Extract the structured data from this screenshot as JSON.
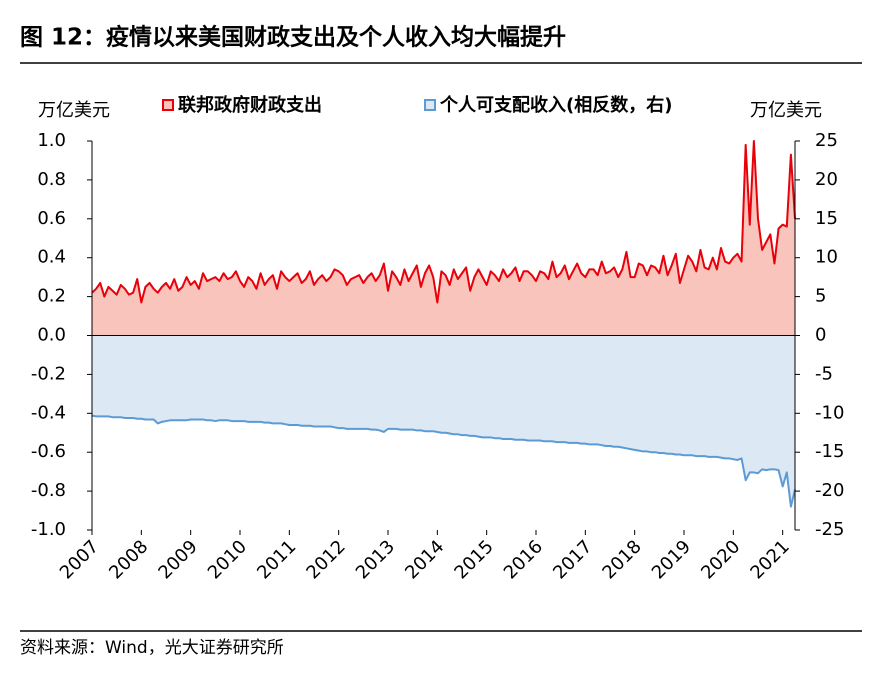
{
  "chart_data": {
    "type": "area",
    "title": "图 12：疫情以来美国财政支出及个人收入均大幅提升",
    "y_label": "万亿美元",
    "y2_label": "万亿美元",
    "source": "资料来源：Wind，光大证券研究所",
    "categories": [
      "2007",
      null,
      null,
      null,
      null,
      null,
      null,
      null,
      null,
      null,
      null,
      null,
      "2008",
      null,
      null,
      null,
      null,
      null,
      null,
      null,
      null,
      null,
      null,
      null,
      "2009",
      null,
      null,
      null,
      null,
      null,
      null,
      null,
      null,
      null,
      null,
      null,
      "2010",
      null,
      null,
      null,
      null,
      null,
      null,
      null,
      null,
      null,
      null,
      null,
      "2011",
      null,
      null,
      null,
      null,
      null,
      null,
      null,
      null,
      null,
      null,
      null,
      "2012",
      null,
      null,
      null,
      null,
      null,
      null,
      null,
      null,
      null,
      null,
      null,
      "2013",
      null,
      null,
      null,
      null,
      null,
      null,
      null,
      null,
      null,
      null,
      null,
      "2014",
      null,
      null,
      null,
      null,
      null,
      null,
      null,
      null,
      null,
      null,
      null,
      "2015",
      null,
      null,
      null,
      null,
      null,
      null,
      null,
      null,
      null,
      null,
      null,
      "2016",
      null,
      null,
      null,
      null,
      null,
      null,
      null,
      null,
      null,
      null,
      null,
      "2017",
      null,
      null,
      null,
      null,
      null,
      null,
      null,
      null,
      null,
      null,
      null,
      "2018",
      null,
      null,
      null,
      null,
      null,
      null,
      null,
      null,
      null,
      null,
      null,
      "2019",
      null,
      null,
      null,
      null,
      null,
      null,
      null,
      null,
      null,
      null,
      null,
      "2020",
      null,
      null,
      null,
      null,
      null,
      null,
      null,
      null,
      null,
      null,
      null,
      "2021",
      null,
      null,
      null
    ],
    "series": [
      {
        "name": "联邦政府财政支出",
        "color": "#e8000b",
        "fill": "#f9c4bb",
        "axis": "y",
        "values": [
          0.22,
          0.24,
          0.27,
          0.2,
          0.25,
          0.23,
          0.21,
          0.26,
          0.24,
          0.21,
          0.22,
          0.29,
          0.17,
          0.25,
          0.27,
          0.24,
          0.22,
          0.25,
          0.27,
          0.24,
          0.29,
          0.23,
          0.25,
          0.3,
          0.26,
          0.28,
          0.24,
          0.32,
          0.28,
          0.29,
          0.3,
          0.28,
          0.32,
          0.29,
          0.3,
          0.33,
          0.28,
          0.25,
          0.3,
          0.28,
          0.24,
          0.32,
          0.26,
          0.29,
          0.31,
          0.24,
          0.33,
          0.3,
          0.28,
          0.3,
          0.32,
          0.27,
          0.29,
          0.33,
          0.26,
          0.29,
          0.31,
          0.28,
          0.3,
          0.34,
          0.33,
          0.31,
          0.26,
          0.29,
          0.3,
          0.31,
          0.27,
          0.3,
          0.32,
          0.28,
          0.31,
          0.37,
          0.23,
          0.33,
          0.3,
          0.26,
          0.34,
          0.28,
          0.32,
          0.36,
          0.25,
          0.32,
          0.36,
          0.3,
          0.17,
          0.33,
          0.31,
          0.26,
          0.34,
          0.29,
          0.32,
          0.35,
          0.23,
          0.3,
          0.34,
          0.3,
          0.26,
          0.33,
          0.31,
          0.28,
          0.34,
          0.3,
          0.32,
          0.35,
          0.28,
          0.33,
          0.33,
          0.31,
          0.28,
          0.33,
          0.32,
          0.29,
          0.38,
          0.3,
          0.32,
          0.36,
          0.29,
          0.33,
          0.37,
          0.32,
          0.3,
          0.34,
          0.34,
          0.31,
          0.38,
          0.32,
          0.33,
          0.35,
          0.3,
          0.34,
          0.43,
          0.3,
          0.3,
          0.37,
          0.36,
          0.31,
          0.36,
          0.35,
          0.32,
          0.41,
          0.31,
          0.36,
          0.42,
          0.27,
          0.34,
          0.41,
          0.38,
          0.33,
          0.44,
          0.35,
          0.34,
          0.4,
          0.34,
          0.45,
          0.38,
          0.37,
          0.4,
          0.42,
          0.38,
          0.98,
          0.57,
          1.0,
          0.6,
          0.44,
          0.48,
          0.52,
          0.37,
          0.55,
          0.57,
          0.56,
          0.93,
          0.6
        ]
      },
      {
        "name": "个人可支配收入(相反数，右)",
        "color": "#5b9bd5",
        "fill": "#dde8f5",
        "axis": "y2",
        "values": [
          -10.3,
          -10.4,
          -10.4,
          -10.4,
          -10.4,
          -10.5,
          -10.5,
          -10.5,
          -10.6,
          -10.6,
          -10.6,
          -10.7,
          -10.7,
          -10.8,
          -10.8,
          -10.8,
          -11.3,
          -11.1,
          -11.0,
          -10.9,
          -10.9,
          -10.9,
          -10.9,
          -10.9,
          -10.8,
          -10.8,
          -10.8,
          -10.8,
          -10.9,
          -10.9,
          -11.0,
          -10.9,
          -10.9,
          -10.9,
          -11.0,
          -11.0,
          -11.0,
          -11.0,
          -11.1,
          -11.1,
          -11.1,
          -11.1,
          -11.2,
          -11.2,
          -11.3,
          -11.3,
          -11.3,
          -11.4,
          -11.5,
          -11.5,
          -11.5,
          -11.6,
          -11.6,
          -11.6,
          -11.7,
          -11.7,
          -11.7,
          -11.7,
          -11.7,
          -11.8,
          -11.9,
          -11.9,
          -12.0,
          -12.0,
          -12.0,
          -12.0,
          -12.0,
          -12.0,
          -12.1,
          -12.1,
          -12.2,
          -12.4,
          -12.0,
          -12.0,
          -12.0,
          -12.1,
          -12.1,
          -12.1,
          -12.1,
          -12.2,
          -12.2,
          -12.3,
          -12.3,
          -12.3,
          -12.4,
          -12.5,
          -12.5,
          -12.6,
          -12.7,
          -12.7,
          -12.8,
          -12.8,
          -12.9,
          -12.9,
          -13.0,
          -13.1,
          -13.1,
          -13.1,
          -13.2,
          -13.2,
          -13.3,
          -13.3,
          -13.3,
          -13.4,
          -13.4,
          -13.4,
          -13.5,
          -13.5,
          -13.5,
          -13.5,
          -13.6,
          -13.6,
          -13.6,
          -13.7,
          -13.7,
          -13.7,
          -13.8,
          -13.8,
          -13.8,
          -13.9,
          -13.9,
          -14.0,
          -14.0,
          -14.0,
          -14.1,
          -14.2,
          -14.2,
          -14.3,
          -14.3,
          -14.4,
          -14.5,
          -14.6,
          -14.7,
          -14.8,
          -14.9,
          -14.9,
          -15.0,
          -15.0,
          -15.1,
          -15.1,
          -15.2,
          -15.2,
          -15.3,
          -15.3,
          -15.4,
          -15.4,
          -15.4,
          -15.5,
          -15.5,
          -15.5,
          -15.6,
          -15.6,
          -15.6,
          -15.7,
          -15.8,
          -15.8,
          -15.9,
          -16.0,
          -15.8,
          -18.6,
          -17.6,
          -17.6,
          -17.7,
          -17.2,
          -17.3,
          -17.2,
          -17.2,
          -17.3,
          -19.4,
          -17.6,
          -22.0,
          -19.8
        ]
      }
    ],
    "ylim": [
      -1,
      1
    ],
    "yticks": [
      {
        "value": -1,
        "label": "-1.0"
      },
      -0.8,
      -0.6,
      -0.4,
      -0.2,
      {
        "value": 0,
        "label": "0.0"
      },
      0.2,
      0.4,
      0.6,
      0.8,
      {
        "value": 1,
        "label": "1.0"
      }
    ],
    "y2lim": [
      -25,
      25
    ],
    "y2ticks": [
      -25,
      -20,
      -15,
      -10,
      -5,
      0,
      5,
      10,
      15,
      20,
      25
    ],
    "legend": "top"
  }
}
